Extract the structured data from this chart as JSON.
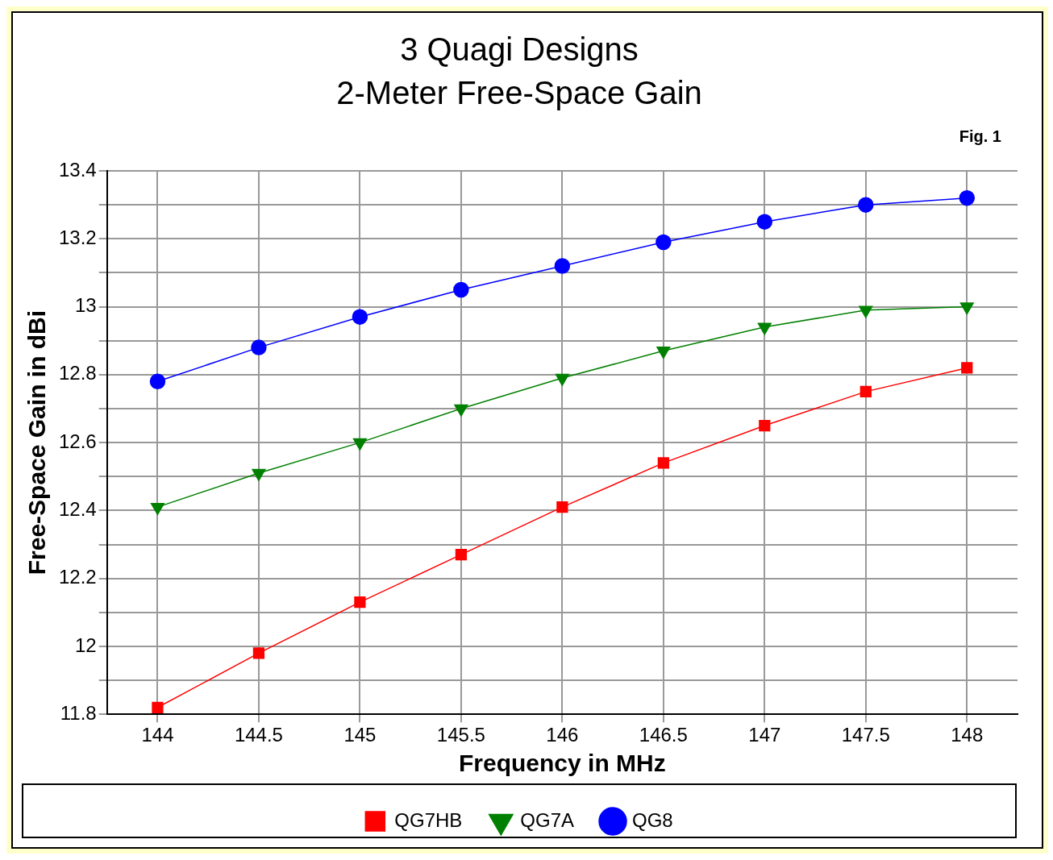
{
  "chart_data": {
    "type": "line",
    "title": "3 Quagi Designs",
    "subtitle": "2-Meter Free-Space Gain",
    "xlabel": "Frequency in MHz",
    "ylabel": "Free-Space Gain in dBi",
    "annotations": [
      "Fig. 1"
    ],
    "x": [
      144,
      144.5,
      145,
      145.5,
      146,
      146.5,
      147,
      147.5,
      148
    ],
    "series": [
      {
        "name": "QG7HB",
        "color": "#ff0000",
        "marker": "square",
        "values": [
          11.82,
          11.98,
          12.13,
          12.27,
          12.41,
          12.54,
          12.65,
          12.75,
          12.82
        ]
      },
      {
        "name": "QG7A",
        "color": "#008000",
        "marker": "triangle",
        "values": [
          12.41,
          12.51,
          12.6,
          12.7,
          12.79,
          12.87,
          12.94,
          12.99,
          13.0
        ]
      },
      {
        "name": "QG8",
        "color": "#0000ff",
        "marker": "circle",
        "values": [
          12.78,
          12.88,
          12.97,
          13.05,
          13.12,
          13.19,
          13.25,
          13.3,
          13.32
        ]
      }
    ],
    "xlim": [
      143.75,
      148.25
    ],
    "xticks": [
      144,
      144.5,
      145,
      145.5,
      146,
      146.5,
      147,
      147.5,
      148
    ],
    "ylim": [
      11.8,
      13.4
    ],
    "yticks": [
      11.8,
      {
        "value": 11.9,
        "label": null
      },
      12,
      {
        "value": 12.1,
        "label": null
      },
      12.2,
      {
        "value": 12.3,
        "label": null
      },
      12.4,
      {
        "value": 12.5,
        "label": null
      },
      12.6,
      {
        "value": 12.7,
        "label": null
      },
      12.8,
      {
        "value": 12.9,
        "label": null
      },
      13,
      {
        "value": 13.1,
        "label": null
      },
      13.2,
      {
        "value": 13.3,
        "label": null
      },
      13.4
    ],
    "grid": true,
    "legend": "bottom",
    "line_style": "solid"
  }
}
